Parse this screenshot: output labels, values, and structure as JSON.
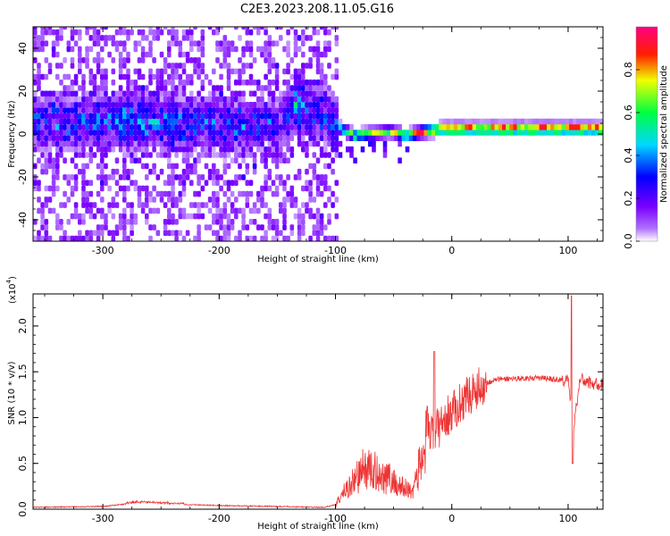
{
  "chart_data": [
    {
      "type": "heatmap",
      "title": "C2E3.2023.208.11.05.G16",
      "xlabel": "Height of straight line (km)",
      "ylabel": "Frequency (Hz)",
      "xlim": [
        -360,
        130
      ],
      "ylim": [
        -50,
        50
      ],
      "xticks": [
        -300,
        -200,
        -100,
        0,
        100
      ],
      "yticks": [
        -40,
        -20,
        0,
        20,
        40
      ],
      "colorbar": {
        "label": "Normalized spectral amplitude",
        "range": [
          0.0,
          1.0
        ],
        "ticks": [
          0.0,
          0.2,
          0.4,
          0.6,
          0.8
        ],
        "tick_labels": [
          "0.0",
          "0.2",
          "0.4",
          "0.6",
          "0.8"
        ],
        "colors": [
          "#ffffff",
          "#8000ff",
          "#0000ff",
          "#00ffff",
          "#00ff00",
          "#ffff00",
          "#ff0000",
          "#ff0080"
        ]
      },
      "ridge": [
        {
          "x": -360,
          "f": 4,
          "amp": 0.32
        },
        {
          "x": -300,
          "f": 5,
          "amp": 0.42
        },
        {
          "x": -250,
          "f": 4,
          "amp": 0.45
        },
        {
          "x": -200,
          "f": 3,
          "amp": 0.35
        },
        {
          "x": -180,
          "f": 2,
          "amp": 0.4
        },
        {
          "x": -150,
          "f": 4,
          "amp": 0.25
        },
        {
          "x": -135,
          "f": 12,
          "amp": 0.55
        },
        {
          "x": -115,
          "f": 8,
          "amp": 0.35
        },
        {
          "x": -100,
          "f": 2,
          "amp": 0.45
        },
        {
          "x": -85,
          "f": -2,
          "amp": 0.6
        },
        {
          "x": -70,
          "f": -1,
          "amp": 0.65
        },
        {
          "x": -55,
          "f": 0,
          "amp": 0.6
        },
        {
          "x": -40,
          "f": -2,
          "amp": 0.7
        },
        {
          "x": -25,
          "f": 0,
          "amp": 0.75
        },
        {
          "x": -10,
          "f": 1,
          "amp": 0.8
        },
        {
          "x": 0,
          "f": 1,
          "amp": 0.85
        },
        {
          "x": 50,
          "f": 1,
          "amp": 0.9
        },
        {
          "x": 100,
          "f": 1,
          "amp": 0.9
        },
        {
          "x": 130,
          "f": 1,
          "amp": 0.9
        }
      ]
    },
    {
      "type": "line",
      "xlabel": "Height of straight line (km)",
      "ylabel": "SNR (10 * v/v)",
      "yscale_label": "(x10",
      "yscale_exp": "4",
      "yscale_close": ")",
      "xlim": [
        -360,
        130
      ],
      "ylim": [
        0.0,
        2.35
      ],
      "xticks": [
        -300,
        -200,
        -100,
        0,
        100
      ],
      "yticks": [
        0.0,
        0.5,
        1.0,
        1.5,
        2.0
      ],
      "ytick_labels": [
        "0.0",
        "0.5",
        "1.0",
        "1.5",
        "2.0"
      ],
      "color": "#ee3333",
      "series": [
        {
          "name": "SNR",
          "x": [
            -360,
            -300,
            -270,
            -250,
            -200,
            -150,
            -110,
            -100,
            -95,
            -85,
            -75,
            -65,
            -55,
            -45,
            -35,
            -30,
            -25,
            -20,
            -15,
            -10,
            -5,
            0,
            10,
            20,
            30,
            40,
            60,
            80,
            100,
            105,
            110,
            120,
            130
          ],
          "y": [
            0.02,
            0.03,
            0.07,
            0.06,
            0.04,
            0.03,
            0.02,
            0.05,
            0.15,
            0.3,
            0.45,
            0.4,
            0.35,
            0.25,
            0.2,
            0.35,
            0.6,
            0.8,
            0.85,
            0.9,
            1.0,
            1.05,
            1.2,
            1.3,
            1.38,
            1.42,
            1.43,
            1.43,
            1.4,
            0.9,
            1.42,
            1.37,
            1.36
          ]
        }
      ],
      "spikes": [
        {
          "x": -15,
          "y": 1.72
        },
        {
          "x": 103,
          "y": 2.33
        },
        {
          "x": 104,
          "y": 0.5
        }
      ]
    }
  ]
}
